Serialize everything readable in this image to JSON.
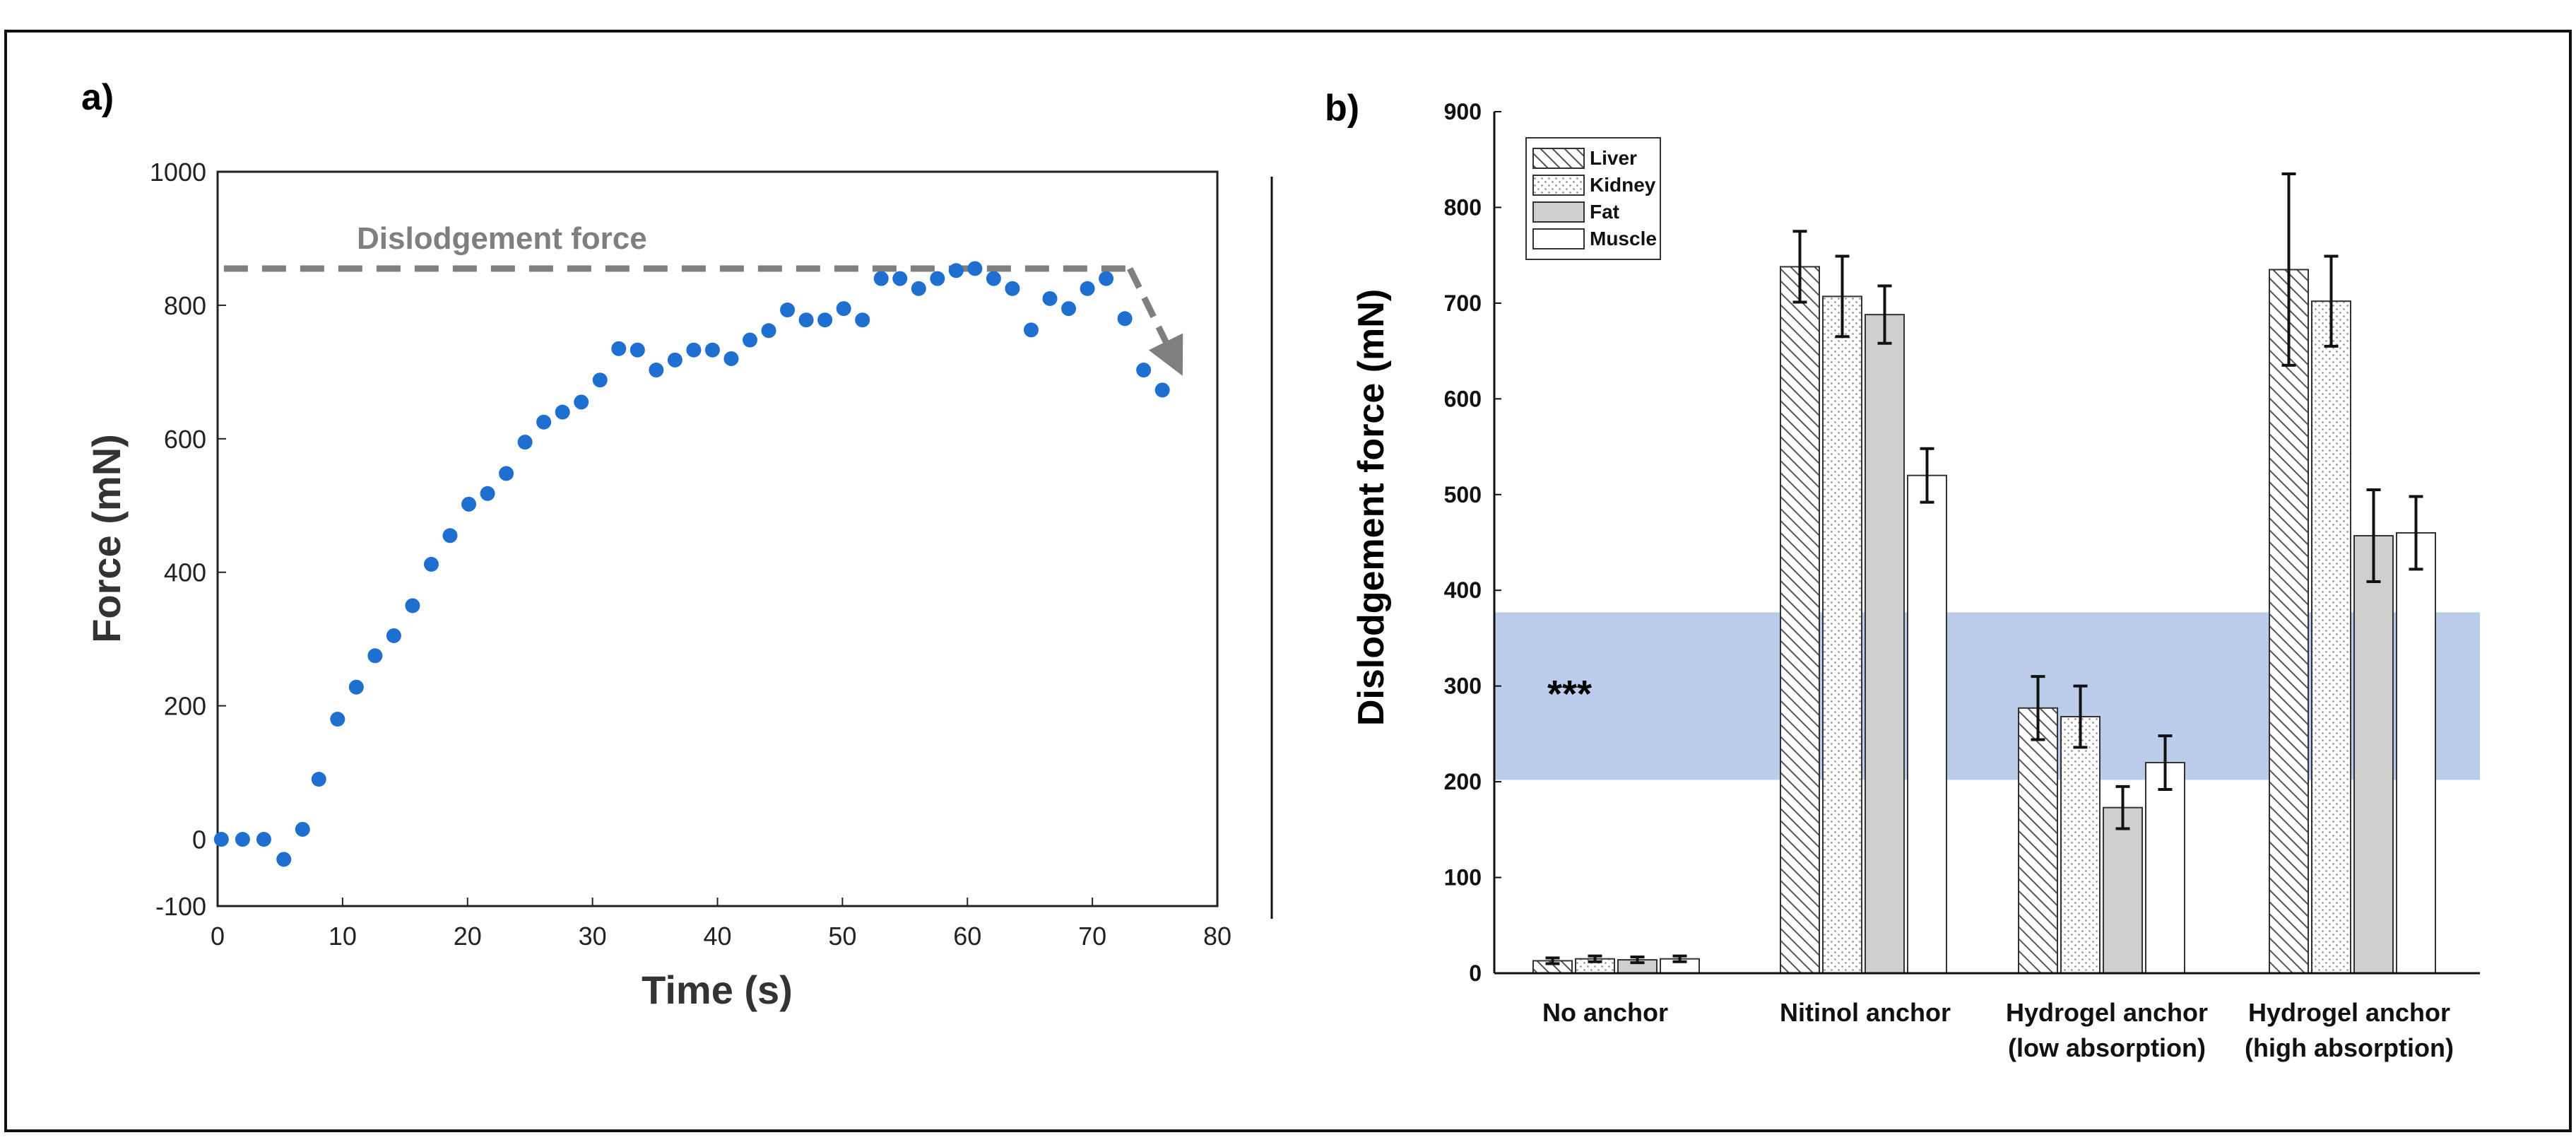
{
  "chart_data": [
    {
      "type": "scatter",
      "panel_label": "a)",
      "xlabel": "Time (s)",
      "ylabel": "Force (mN)",
      "xlim": [
        0,
        80
      ],
      "ylim": [
        -100,
        1000
      ],
      "xticks": [
        "0",
        "10",
        "20",
        "30",
        "40",
        "50",
        "60",
        "70",
        "80"
      ],
      "yticks": [
        "-100",
        "0",
        "200",
        "400",
        "600",
        "800",
        "1000"
      ],
      "point_color": "#1f6fd1",
      "series": [
        {
          "name": "Force",
          "x": [
            0.3,
            2,
            3.7,
            5.3,
            6.8,
            8.1,
            9.6,
            11.1,
            12.6,
            14.1,
            15.6,
            17.1,
            18.6,
            20.1,
            21.6,
            23.1,
            24.6,
            26.1,
            27.6,
            29.1,
            30.6,
            32.1,
            33.6,
            35.1,
            36.6,
            38.1,
            39.6,
            41.1,
            42.6,
            44.1,
            45.6,
            47.1,
            48.6,
            50.1,
            51.6,
            53.1,
            54.6,
            56.1,
            57.6,
            59.1,
            60.6,
            62.1,
            63.6,
            65.1,
            66.6,
            68.1,
            69.6,
            71.1,
            72.6,
            74.1,
            75.6
          ],
          "y": [
            0,
            0,
            0,
            -30,
            15,
            90,
            180,
            228,
            275,
            305,
            350,
            412,
            455,
            502,
            518,
            548,
            595,
            625,
            640,
            655,
            688,
            735,
            733,
            703,
            718,
            733,
            733,
            720,
            748,
            762,
            793,
            778,
            778,
            795,
            778,
            840,
            840,
            825,
            840,
            852,
            855,
            840,
            825,
            763,
            810,
            795,
            825,
            840,
            780,
            703,
            673
          ]
        }
      ],
      "reference_line": {
        "label": "Dislodgement force",
        "value": 855,
        "x_end": 73,
        "arrow_to": [
          77,
          705
        ],
        "color": "#7f7f7f"
      }
    },
    {
      "type": "bar",
      "panel_label": "b)",
      "ylabel": "Dislodgement force (mN)",
      "ylim": [
        0,
        900
      ],
      "yticks": [
        "0",
        "100",
        "200",
        "300",
        "400",
        "500",
        "600",
        "700",
        "800",
        "900"
      ],
      "categories": [
        "No anchor",
        "Nitinol anchor",
        "Hydrogel anchor (low absorption)",
        "Hydrogel anchor (high absorption)"
      ],
      "category_lines": [
        [
          "No anchor"
        ],
        [
          "Nitinol anchor"
        ],
        [
          "Hydrogel anchor",
          "(low absorption)"
        ],
        [
          "Hydrogel anchor",
          "(high absorption)"
        ]
      ],
      "series": [
        {
          "name": "Liver",
          "values": [
            13,
            738,
            277,
            735
          ],
          "errors": [
            3,
            37,
            33,
            100
          ],
          "pattern": "hatch"
        },
        {
          "name": "Kidney",
          "values": [
            15,
            707,
            268,
            702
          ],
          "errors": [
            3,
            42,
            32,
            47
          ],
          "pattern": "dots"
        },
        {
          "name": "Fat",
          "values": [
            14,
            688,
            173,
            457
          ],
          "errors": [
            3,
            30,
            22,
            48
          ],
          "pattern": "gray"
        },
        {
          "name": "Muscle",
          "values": [
            15,
            520,
            220,
            460
          ],
          "errors": [
            3,
            28,
            28,
            38
          ],
          "pattern": "white"
        }
      ],
      "band": {
        "from": 202,
        "to": 377,
        "color": "#bccceb"
      },
      "annotation": "***",
      "legend_position": "top-left"
    }
  ]
}
